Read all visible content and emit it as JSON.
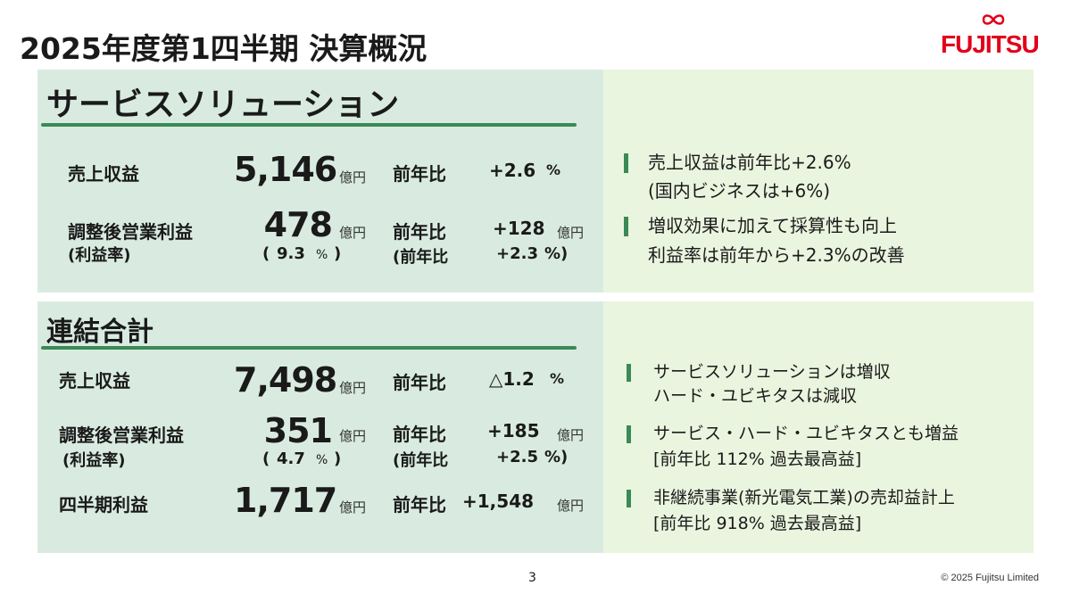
{
  "header": {
    "title": "2025年度第1四半期 決算概況",
    "logo_text": "FUJITSU"
  },
  "colors": {
    "accent_green": "#3a8a55",
    "panel_left": "#d9ebe1",
    "panel_right": "#eaf5df",
    "logo_red": "#e2001a"
  },
  "service_solutions": {
    "title": "サービスソリューション",
    "revenue": {
      "label": "売上収益",
      "value": "5,146",
      "unit": "億円",
      "yoy_label": "前年比",
      "yoy_value": "+2.6",
      "yoy_unit": "%"
    },
    "adj_op_profit": {
      "label": "調整後営業利益",
      "sub_label": "(利益率)",
      "value": "478",
      "unit": "億円",
      "margin_open": "(",
      "margin_value": "9.3",
      "margin_unit": "%",
      "margin_close": ")",
      "yoy_label": "前年比",
      "yoy_value": "+128",
      "yoy_unit": "億円",
      "yoy_sub_label": "(前年比",
      "yoy_sub_value": "+2.3",
      "yoy_sub_unit": "%)"
    },
    "notes": [
      [
        "売上収益は前年比+2.6%",
        "(国内ビジネスは+6%)"
      ],
      [
        "増収効果に加えて採算性も向上",
        "利益率は前年から+2.3%の改善"
      ]
    ]
  },
  "consolidated": {
    "title": "連結合計",
    "revenue": {
      "label": "売上収益",
      "value": "7,498",
      "unit": "億円",
      "yoy_label": "前年比",
      "yoy_value": "△1.2",
      "yoy_unit": "%"
    },
    "adj_op_profit": {
      "label": "調整後営業利益",
      "sub_label": "(利益率)",
      "value": "351",
      "unit": "億円",
      "margin_open": "(",
      "margin_value": "4.7",
      "margin_unit": "%",
      "margin_close": ")",
      "yoy_label": "前年比",
      "yoy_value": "+185",
      "yoy_unit": "億円",
      "yoy_sub_label": "(前年比",
      "yoy_sub_value": "+2.5",
      "yoy_sub_unit": "%)"
    },
    "quarterly_profit": {
      "label": "四半期利益",
      "value": "1,717",
      "unit": "億円",
      "yoy_label": "前年比",
      "yoy_value": "+1,548",
      "yoy_unit": "億円"
    },
    "notes": [
      [
        "サービスソリューションは増収",
        "ハード・ユビキタスは減収"
      ],
      [
        "サービス・ハード・ユビキタスとも増益",
        "[前年比 112% 過去最高益]"
      ],
      [
        "非継続事業(新光電気工業)の売却益計上",
        "[前年比 918% 過去最高益]"
      ]
    ]
  },
  "footer": {
    "page_number": "3",
    "copyright": "© 2025 Fujitsu Limited"
  }
}
